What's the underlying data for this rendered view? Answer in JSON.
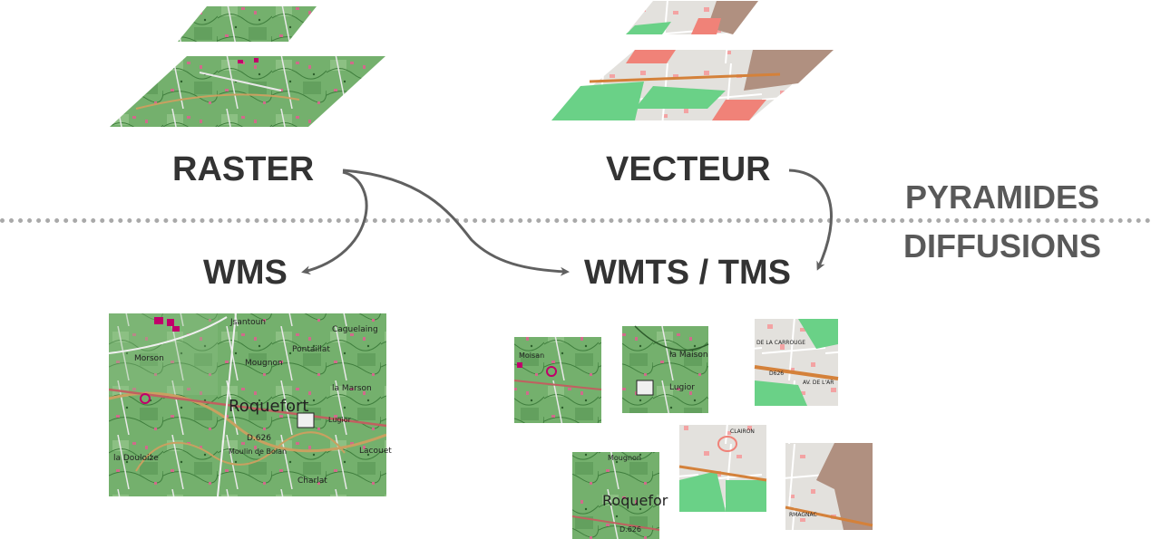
{
  "labels": {
    "raster": "RASTER",
    "vecteur": "VECTEUR",
    "wms": "WMS",
    "wmts": "WMTS / TMS",
    "pyramides": "PYRAMIDES",
    "diffusions": "DIFFUSIONS"
  },
  "map_text": {
    "wms": {
      "place1": "Jsantoun",
      "place2": "Caguelaing",
      "place3": "Morson",
      "place4": "Mougnon",
      "place5": "Pontaillat",
      "place6": "la Marson",
      "town": "Roquefort",
      "place7": "Lugior",
      "road": "D.626",
      "place8": "Moulin de Bolan",
      "place9": "la Douloize",
      "place10": "Lacouet",
      "place11": "Charlat"
    },
    "tiles": {
      "t1_label": "Moisan",
      "t2_label1": "la Maison",
      "t2_label2": "Lugior",
      "t3_label1": "DE LA CARROUGE",
      "t3_label2": "D626",
      "t3_label3": "AV. DE L'AR",
      "t4_label1": "Mougnon",
      "t4_label2": "Roquefor",
      "t4_label3": "D.626",
      "t5_label": "CLAIRON",
      "t6_label": "RMAGNAC"
    }
  },
  "colors": {
    "map_green": "#6fae6a",
    "map_green_dark": "#4f8f4d",
    "map_pink": "#d06b8b",
    "map_magenta": "#c0006a",
    "vector_bg": "#e2e0dc",
    "vector_green": "#6ad187",
    "vector_brown": "#b09080",
    "vector_salmon": "#f08278",
    "vector_road": "#d4813a",
    "arrow": "#606060",
    "divider": "#a9a9a9"
  }
}
